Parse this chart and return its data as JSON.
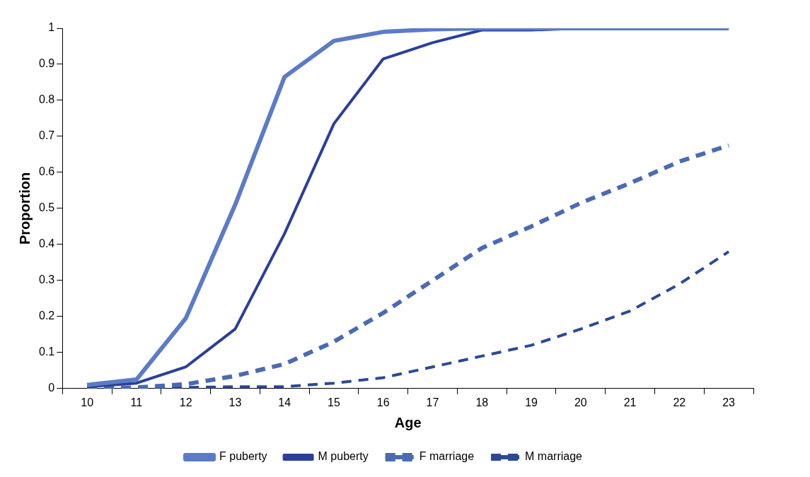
{
  "chart_data": {
    "type": "line",
    "xlabel": "Age",
    "ylabel": "Proportion",
    "categories": [
      "10",
      "11",
      "12",
      "13",
      "14",
      "15",
      "16",
      "17",
      "18",
      "19",
      "20",
      "21",
      "22",
      "23"
    ],
    "series": [
      {
        "name": "F puberty",
        "color": "#5b7bc8",
        "line_style": "solid",
        "values": [
          0.01,
          0.025,
          0.195,
          0.51,
          0.865,
          0.965,
          0.99,
          0.997,
          1,
          1,
          1,
          1,
          1,
          1
        ]
      },
      {
        "name": "M puberty",
        "color": "#2a3f9a",
        "line_style": "solid",
        "values": [
          0.005,
          0.015,
          0.06,
          0.165,
          0.43,
          0.735,
          0.915,
          0.96,
          0.995,
          0.995,
          1,
          1,
          1,
          1
        ]
      },
      {
        "name": "F marriage",
        "color": "#4a6ab4",
        "line_style": "dashed",
        "values": [
          0,
          0.003,
          0.012,
          0.035,
          0.068,
          0.13,
          0.21,
          0.3,
          0.39,
          0.45,
          0.515,
          0.57,
          0.63,
          0.675
        ]
      },
      {
        "name": "M marriage",
        "color": "#2a4a94",
        "line_style": "dashed",
        "values": [
          0,
          0,
          0.003,
          0.005,
          0.005,
          0.015,
          0.03,
          0.06,
          0.09,
          0.12,
          0.165,
          0.215,
          0.29,
          0.38
        ]
      }
    ],
    "ylim": [
      0,
      1
    ],
    "yticks": [
      0,
      0.1,
      0.2,
      0.3,
      0.4,
      0.5,
      0.6,
      0.7,
      0.8,
      0.9,
      1
    ],
    "grid": false,
    "legend": "bottom",
    "marker": "none"
  }
}
